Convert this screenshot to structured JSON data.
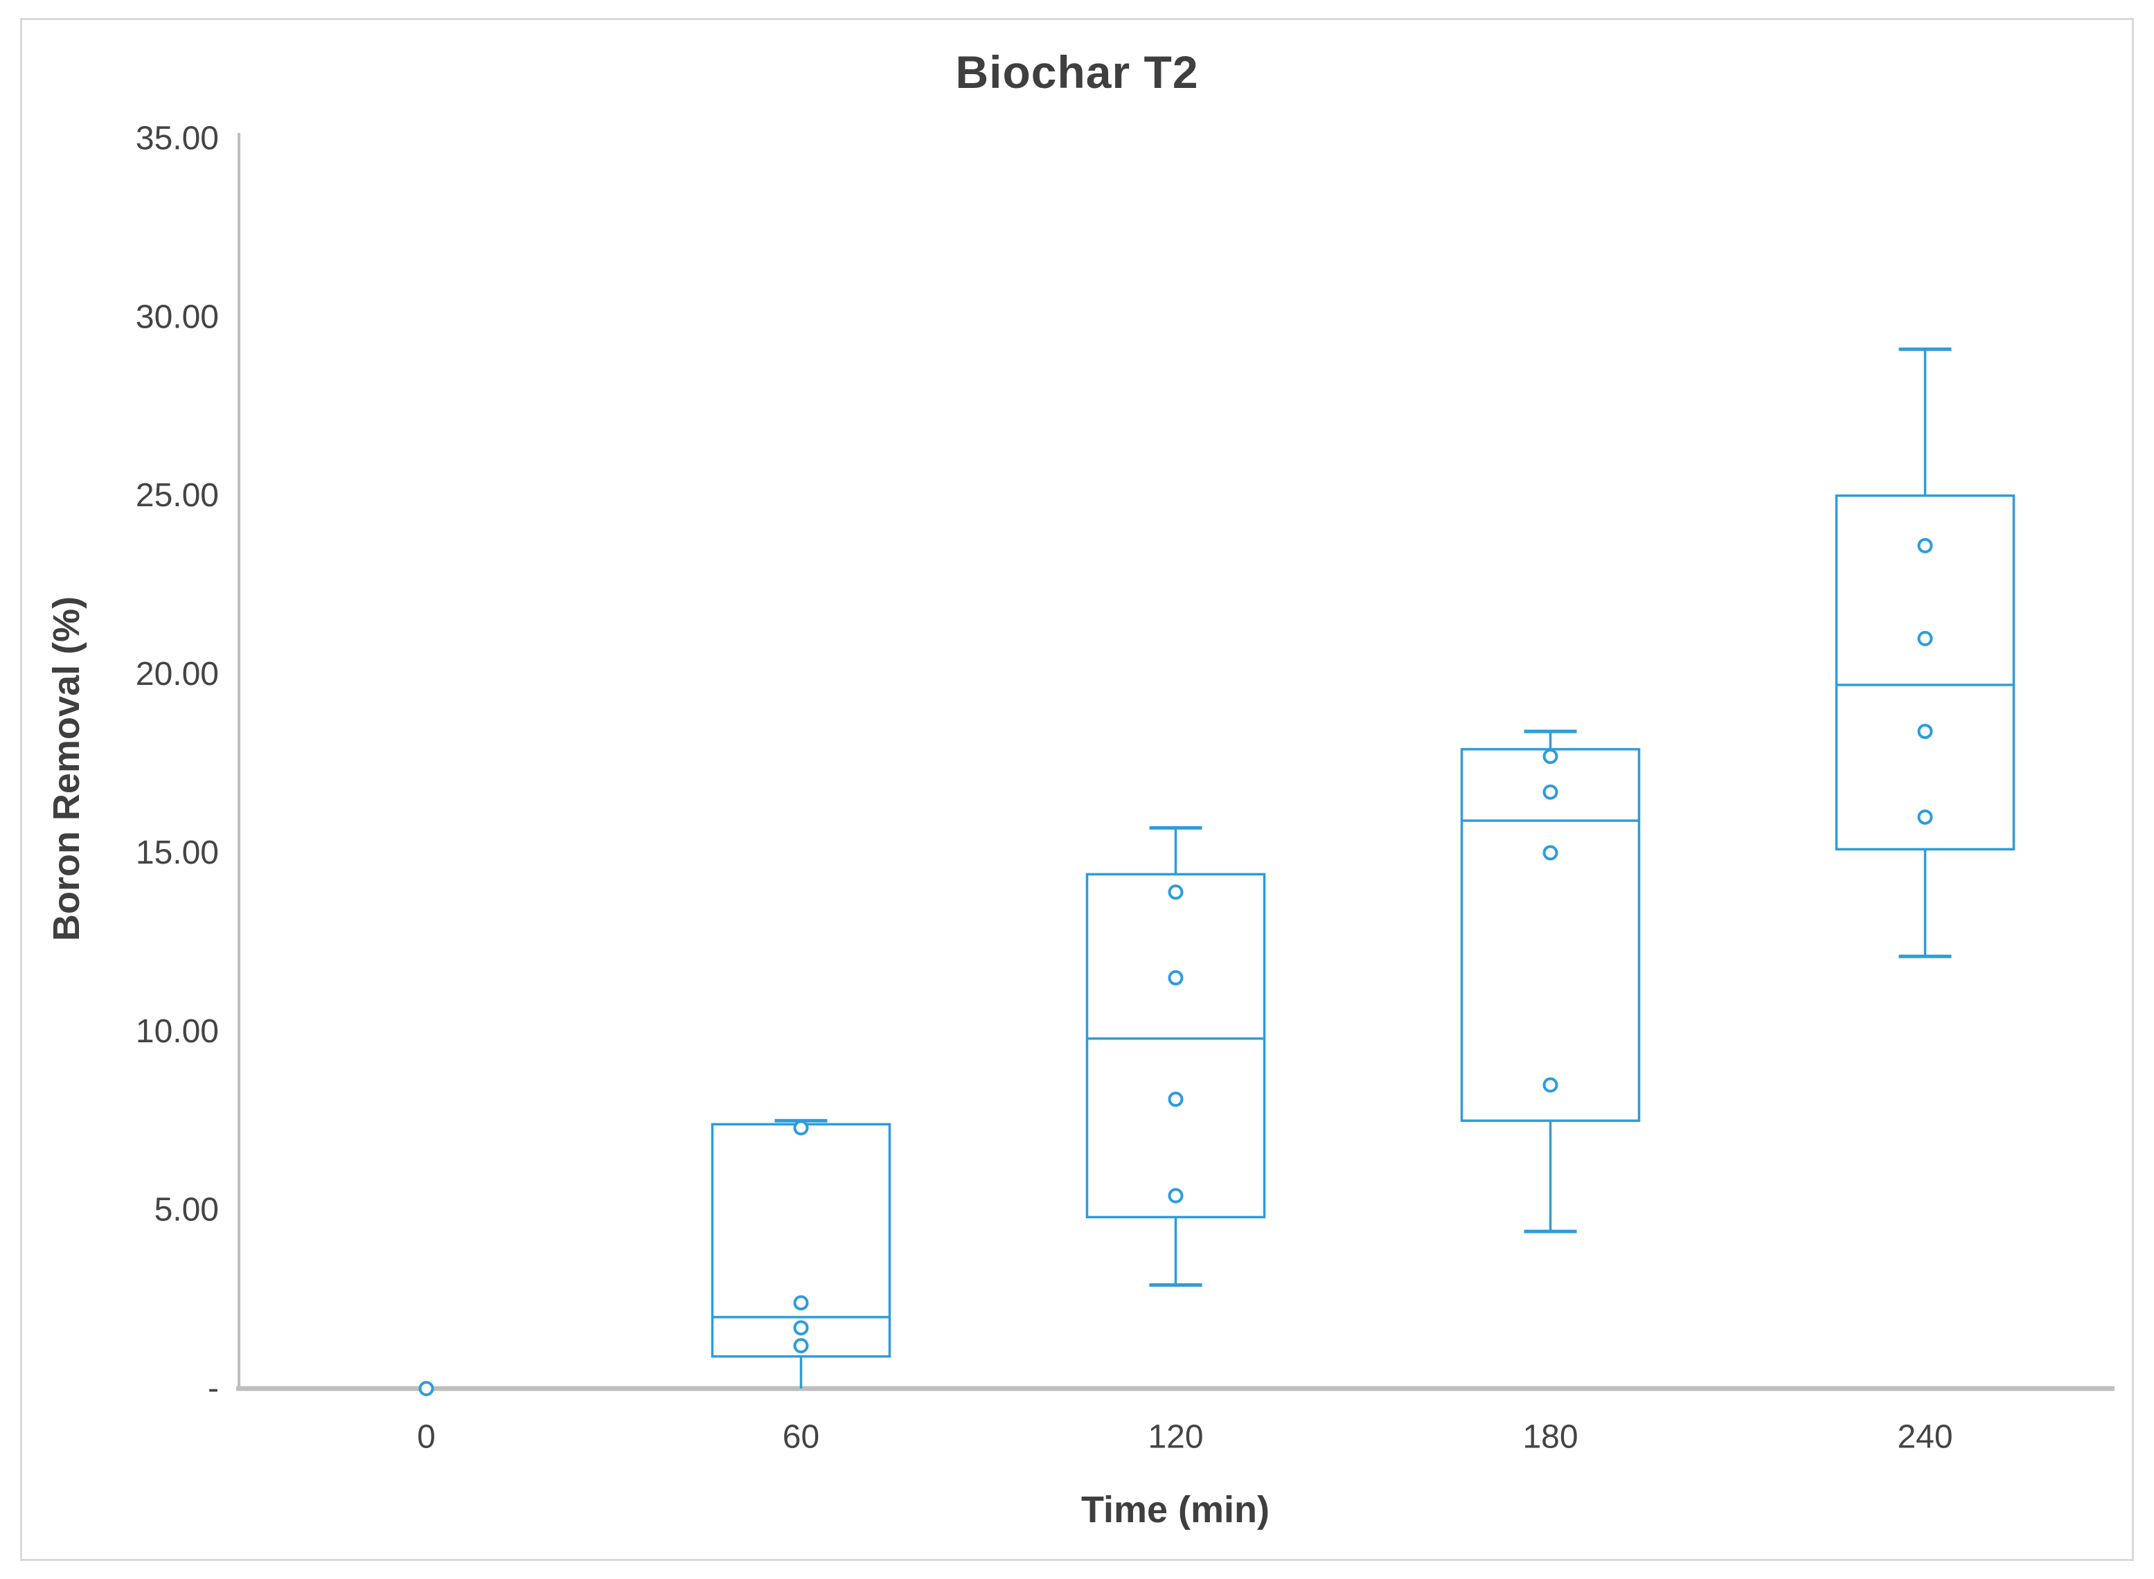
{
  "chart_data": {
    "type": "box",
    "title": "Biochar T2",
    "xlabel": "Time (min)",
    "ylabel": "Boron Removal (%)",
    "categories": [
      "0",
      "60",
      "120",
      "180",
      "240"
    ],
    "y_axis": {
      "min": 0,
      "max": 35,
      "tick_step": 5,
      "ticks": [
        {
          "value": 35,
          "label": "35.00"
        },
        {
          "value": 30,
          "label": "30.00"
        },
        {
          "value": 25,
          "label": "25.00"
        },
        {
          "value": 20,
          "label": "20.00"
        },
        {
          "value": 15,
          "label": "15.00"
        },
        {
          "value": 10,
          "label": "10.00"
        },
        {
          "value": 5,
          "label": "5.00"
        },
        {
          "value": 0,
          "label": "-"
        }
      ]
    },
    "series": [
      {
        "category": "0",
        "min": 0.0,
        "q1": 0.0,
        "median": 0.0,
        "q3": 0.0,
        "max": 0.0,
        "points": [
          0.0
        ]
      },
      {
        "category": "60",
        "min": 0.0,
        "q1": 0.9,
        "median": 2.0,
        "q3": 7.4,
        "max": 7.5,
        "points": [
          7.3,
          2.4,
          1.7,
          1.2
        ]
      },
      {
        "category": "120",
        "min": 2.9,
        "q1": 4.8,
        "median": 9.8,
        "q3": 14.4,
        "max": 15.7,
        "points": [
          13.9,
          11.5,
          8.1,
          5.4
        ]
      },
      {
        "category": "180",
        "min": 4.4,
        "q1": 7.5,
        "median": 15.9,
        "q3": 17.9,
        "max": 18.4,
        "points": [
          17.7,
          16.7,
          15.0,
          8.5
        ]
      },
      {
        "category": "240",
        "min": 12.1,
        "q1": 15.1,
        "median": 19.7,
        "q3": 25.0,
        "max": 29.1,
        "points": [
          23.6,
          21.0,
          18.4,
          16.0
        ]
      }
    ],
    "legend": "none",
    "grid": "none",
    "colors": {
      "box_stroke": "#2E9CDB",
      "axis_line": "#BFBFBF",
      "title_text": "#3F3F3F",
      "label_text": "#444444",
      "frame_border": "#D9D9D9",
      "background": "#FFFFFF"
    }
  }
}
